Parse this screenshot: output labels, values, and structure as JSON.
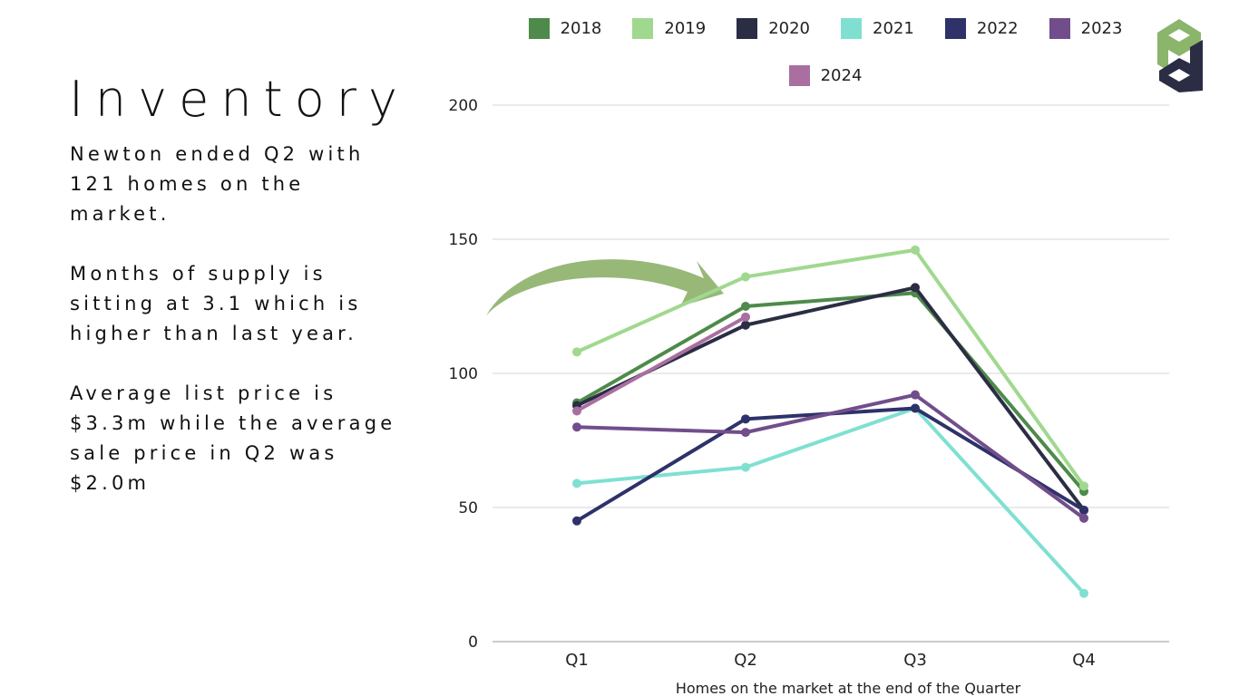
{
  "slide": {
    "title": "Inventory",
    "paragraphs": [
      "Newton ended Q2 with 121 homes on the market.",
      "Months of supply is sitting at 3.1 which is higher than last year.",
      "Average list price is $3.3m while the average sale price in Q2 was $2.0m"
    ]
  },
  "chart_data": {
    "type": "line",
    "title": "",
    "xlabel": "Homes on the market at the end of the Quarter",
    "ylabel": "",
    "categories": [
      "Q1",
      "Q2",
      "Q3",
      "Q4"
    ],
    "ylim": [
      0,
      200
    ],
    "yticks": [
      0,
      50,
      100,
      150,
      200
    ],
    "grid": true,
    "legend_position": "top",
    "series": [
      {
        "name": "2018",
        "color": "#4e8a4a",
        "values": [
          89,
          125,
          130,
          56
        ]
      },
      {
        "name": "2019",
        "color": "#a0d88f",
        "values": [
          108,
          136,
          146,
          58
        ]
      },
      {
        "name": "2020",
        "color": "#2b2d44",
        "values": [
          88,
          118,
          132,
          49
        ]
      },
      {
        "name": "2021",
        "color": "#7fe0d2",
        "values": [
          59,
          65,
          87,
          18
        ]
      },
      {
        "name": "2022",
        "color": "#2e3269",
        "values": [
          45,
          83,
          87,
          49
        ]
      },
      {
        "name": "2023",
        "color": "#714e8b",
        "values": [
          80,
          78,
          92,
          46
        ]
      },
      {
        "name": "2024",
        "color": "#a96fa0",
        "values": [
          86,
          121,
          null,
          null
        ]
      }
    ],
    "annotations": [
      {
        "type": "curved-arrow",
        "color": "#98b878",
        "points_to": "Q2"
      }
    ]
  },
  "logo": {
    "icon": "pd-logo-icon",
    "colors": [
      "#8ab56a",
      "#2b2d44"
    ]
  }
}
